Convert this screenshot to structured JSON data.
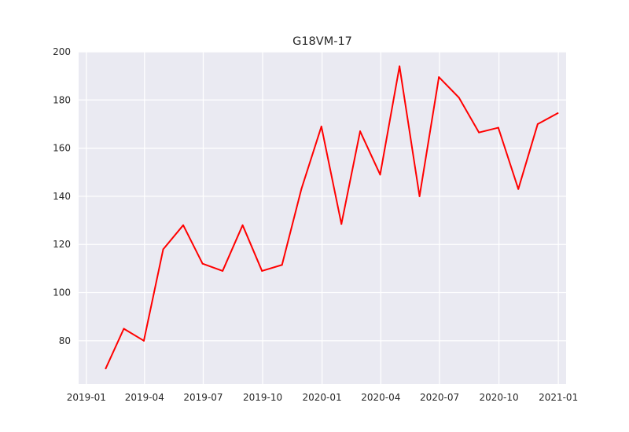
{
  "chart_data": {
    "type": "line",
    "title": "G18VM-17",
    "xlabel": "",
    "ylabel": "",
    "grid": true,
    "ylim": [
      62,
      200
    ],
    "xlim": [
      "2018-12-20",
      "2021-01-13"
    ],
    "y_ticks": [
      80,
      100,
      120,
      140,
      160,
      180,
      200
    ],
    "x_ticks": [
      {
        "date": "2019-01-01",
        "label": "2019-01"
      },
      {
        "date": "2019-04-01",
        "label": "2019-04"
      },
      {
        "date": "2019-07-01",
        "label": "2019-07"
      },
      {
        "date": "2019-10-01",
        "label": "2019-10"
      },
      {
        "date": "2020-01-01",
        "label": "2020-01"
      },
      {
        "date": "2020-04-01",
        "label": "2020-04"
      },
      {
        "date": "2020-07-01",
        "label": "2020-07"
      },
      {
        "date": "2020-10-01",
        "label": "2020-10"
      },
      {
        "date": "2021-01-01",
        "label": "2021-01"
      }
    ],
    "series": [
      {
        "color": "#ff0000",
        "x": [
          "2019-01-31",
          "2019-02-28",
          "2019-03-31",
          "2019-04-30",
          "2019-05-31",
          "2019-06-30",
          "2019-07-31",
          "2019-08-31",
          "2019-09-30",
          "2019-10-31",
          "2019-11-30",
          "2019-12-31",
          "2020-01-31",
          "2020-02-29",
          "2020-03-31",
          "2020-04-30",
          "2020-05-31",
          "2020-06-30",
          "2020-07-31",
          "2020-08-31",
          "2020-09-30",
          "2020-10-31",
          "2020-11-30",
          "2020-12-31"
        ],
        "values": [
          68.5,
          85,
          80,
          118,
          128,
          112,
          109,
          128,
          109,
          111.5,
          143,
          169,
          128.5,
          167,
          149,
          194,
          140,
          189.5,
          181,
          166.5,
          168.5,
          143,
          170,
          174.5
        ]
      }
    ]
  }
}
